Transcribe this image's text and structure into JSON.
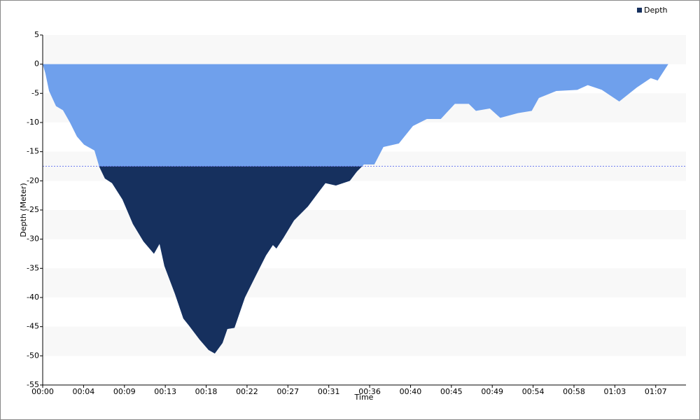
{
  "chart_data": {
    "type": "area",
    "x_label": "Time",
    "y_label": "Depth (Meter)",
    "xlim": [
      0,
      4250
    ],
    "ylim": [
      -55,
      5
    ],
    "xticks": [
      {
        "value": 0,
        "label": "00:00"
      },
      {
        "value": 270,
        "label": "00:04"
      },
      {
        "value": 540,
        "label": "00:09"
      },
      {
        "value": 810,
        "label": "00:13"
      },
      {
        "value": 1080,
        "label": "00:18"
      },
      {
        "value": 1350,
        "label": "00:22"
      },
      {
        "value": 1620,
        "label": "00:27"
      },
      {
        "value": 1890,
        "label": "00:31"
      },
      {
        "value": 2160,
        "label": "00:36"
      },
      {
        "value": 2430,
        "label": "00:40"
      },
      {
        "value": 2700,
        "label": "00:45"
      },
      {
        "value": 2970,
        "label": "00:49"
      },
      {
        "value": 3240,
        "label": "00:54"
      },
      {
        "value": 3510,
        "label": "00:58"
      },
      {
        "value": 3780,
        "label": "01:03"
      },
      {
        "value": 4050,
        "label": "01:07"
      }
    ],
    "yticks": [
      5,
      0,
      -5,
      -10,
      -15,
      -20,
      -25,
      -30,
      -35,
      -40,
      -45,
      -50,
      -55
    ],
    "grid": true,
    "legend": "top-right",
    "reference_line": -17.5,
    "reference_color": "#6f7ff0",
    "shallow_color": "#6fa0ec",
    "series": [
      {
        "name": "Depth",
        "color": "#16305e",
        "x": [
          0,
          18,
          42,
          88,
          134,
          180,
          226,
          273,
          342,
          374,
          411,
          458,
          527,
          596,
          666,
          735,
          772,
          804,
          874,
          929,
          966,
          1036,
          1096,
          1137,
          1188,
          1220,
          1267,
          1336,
          1405,
          1475,
          1521,
          1544,
          1590,
          1660,
          1752,
          1821,
          1868,
          1937,
          2029,
          2076,
          2122,
          2191,
          2251,
          2353,
          2446,
          2538,
          2630,
          2723,
          2815,
          2862,
          2954,
          3023,
          3139,
          3231,
          3278,
          3393,
          3532,
          3601,
          3694,
          3809,
          3925,
          4017,
          4063,
          4133
        ],
        "values": [
          0,
          -1.6,
          -4.6,
          -7.2,
          -7.9,
          -10,
          -12.4,
          -13.8,
          -14.8,
          -17.6,
          -19.6,
          -20.4,
          -23.2,
          -27.4,
          -30.4,
          -32.5,
          -30.8,
          -34.6,
          -39.4,
          -43.6,
          -44.8,
          -47.2,
          -49,
          -49.6,
          -47.8,
          -45.4,
          -45.2,
          -40,
          -36.4,
          -32.8,
          -31,
          -31.6,
          -29.8,
          -26.8,
          -24.4,
          -22,
          -20.4,
          -20.8,
          -20,
          -18.4,
          -17.2,
          -17.2,
          -14.2,
          -13.6,
          -10.6,
          -9.4,
          -9.4,
          -6.8,
          -6.8,
          -8,
          -7.6,
          -9.2,
          -8.4,
          -8,
          -5.8,
          -4.6,
          -4.4,
          -3.6,
          -4.4,
          -6.4,
          -4,
          -2.4,
          -2.8,
          0
        ]
      }
    ]
  }
}
